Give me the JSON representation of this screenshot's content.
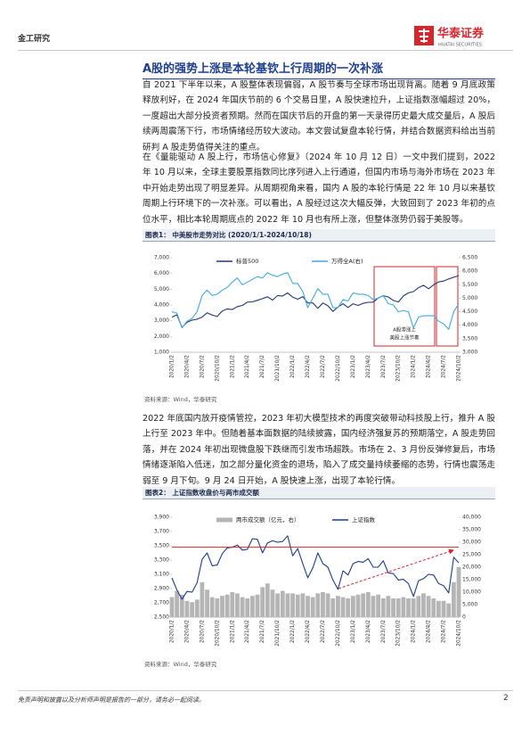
{
  "header": {
    "section": "金工研究",
    "logo_cn": "华泰证券",
    "logo_en": "HUATAI SECURITIES"
  },
  "title": "A股的强势上涨是本轮基钦上行周期的一次补涨",
  "paragraphs": [
    "自 2021 下半年以来，A 股整体表现偏弱，A 股节奏与全球市场出现背离。随着 9 月底政策释放利好，在 2024 年国庆节前的 6 个交易日里，A 股快速拉升，上证指数涨幅超过 20%，一度超出大部分投资者预期。然而在国庆节后的开盘的第一天录得历史最大成交量后，A 股后续两周震荡下行，市场情绪经历较大波动。本文尝试复盘本轮行情，并结合数据资料给出当前研判 A 股走势值得关注的重点。",
    "在《量能驱动 A 股上行，市场信心修复》（2024 年 10 月 12 日）一文中我们提到，2022 年 10 月以来，全球主要股票指数同比序列进入上行通道，但国内市场与海外市场在 2023 年中开始走势出现了明显差异。从周期视角来看，国内 A 股的本轮行情是 22 年 10 月以来基钦周期上行环境下的一次补涨。可以看出，A 股经过这次大幅反弹，大致回到了 2023 年初的点位水平，相比本轮周期底点的 2022 年 10 月也有所上涨，但整体涨势仍弱于美股等。",
    "2022 年底国内放开疫情管控，2023 年初大模型技术的再度突破带动科技股上行，推升 A 股上行至 2023 年中。但随着基本面数据的陆续披露，国内经济强复苏的预期落空，A 股走势回落，并在 2024 年初出现微盘股下跌继而引发市场超跌。市场在 2、3 月份反弹修复后，市场情绪逐渐陷入低迷，加之部分量化资金的退场，陷入了成交量持续萎缩的态势，行情也震荡走弱至 9 月下旬。9 月 24 日开始，A 股快速上涨，出现了本轮行情。"
  ],
  "footer": {
    "disclaimer": "免责声明和披露以及分析师声明是报告的一部分，请务必一起阅读。",
    "page": 2
  },
  "chart_data": [
    {
      "type": "line",
      "title": "图表1： 中美股市走势对比 (2020/1/1-2024/10/18)",
      "source": "资料来源：Wind，华泰研究",
      "annotation": [
        "A股滞涨上",
        "美股上涨节奏"
      ],
      "categories": [
        "2020/1/2",
        null,
        null,
        "2020/4/2",
        null,
        null,
        "2020/7/2",
        null,
        null,
        "2020/10/2",
        null,
        null,
        "2021/1/2",
        null,
        null,
        "2021/4/2",
        null,
        null,
        "2021/7/2",
        null,
        null,
        "2021/10/2",
        null,
        null,
        "2022/1/2",
        null,
        null,
        "2022/4/2",
        null,
        null,
        "2022/7/2",
        null,
        null,
        "2022/10/2",
        null,
        null,
        "2023/1/2",
        null,
        null,
        "2023/4/2",
        null,
        null,
        "2023/7/2",
        null,
        null,
        "2023/10/2",
        null,
        null,
        "2024/1/2",
        null,
        null,
        "2024/4/2",
        null,
        null,
        "2024/7/2",
        null,
        null,
        "2024/10/2"
      ],
      "series": [
        {
          "name": "标普500",
          "color": "#1f3a7a",
          "kind": "line",
          "values": [
            3230,
            3380,
            2580,
            2900,
            3040,
            3100,
            3230,
            3500,
            3360,
            3270,
            3620,
            3750,
            3710,
            3900,
            3970,
            4180,
            4200,
            4300,
            4400,
            4520,
            4310,
            4600,
            4570,
            4770,
            4500,
            4370,
            4530,
            4130,
            4130,
            3790,
            4130,
            3950,
            3590,
            3870,
            4080,
            3840,
            4080,
            3970,
            4110,
            4170,
            4180,
            4450,
            4590,
            4510,
            4290,
            4190,
            4570,
            4770,
            4850,
            5100,
            5250,
            5030,
            5280,
            5460,
            5520,
            5650,
            5760,
            5860
          ]
        },
        {
          "name": "万得全A(右)",
          "color": "#3fa9e0",
          "kind": "line",
          "axis": "y2",
          "values": [
            4500,
            4450,
            3900,
            4150,
            4250,
            4500,
            5100,
            5300,
            5100,
            5150,
            5300,
            5400,
            5600,
            5750,
            5500,
            5600,
            5700,
            5800,
            5750,
            5950,
            5850,
            5800,
            5900,
            5950,
            5550,
            5550,
            5250,
            4650,
            5000,
            5350,
            5150,
            5150,
            4650,
            4650,
            4950,
            4900,
            5200,
            5150,
            5150,
            5100,
            4950,
            5000,
            5100,
            4800,
            4750,
            4500,
            4550,
            4500,
            3900,
            4300,
            4350,
            4350,
            4350,
            4150,
            4050,
            3850,
            4500,
            4800
          ]
        }
      ],
      "ylim": [
        1000,
        7000
      ],
      "yticks": [
        {
          "value": 1000,
          "label": "1,000"
        },
        {
          "value": 2000,
          "label": "2,000"
        },
        {
          "value": 3000,
          "label": "3,000"
        },
        {
          "value": 4000,
          "label": "4,000"
        },
        {
          "value": 5000,
          "label": "5,000"
        },
        {
          "value": 6000,
          "label": "6,000"
        },
        {
          "value": 7000,
          "label": "7,000"
        }
      ],
      "y2lim": [
        3000,
        6500
      ],
      "y2ticks": [
        {
          "value": 3000,
          "label": "3,000"
        },
        {
          "value": 3500,
          "label": "3,500"
        },
        {
          "value": 4000,
          "label": "4,000"
        },
        {
          "value": 4500,
          "label": "4,500"
        },
        {
          "value": 5000,
          "label": "5,000"
        },
        {
          "value": 5500,
          "label": "5,500"
        },
        {
          "value": 6000,
          "label": "6,000"
        },
        {
          "value": 6500,
          "label": "6,500"
        }
      ],
      "grid": false
    },
    {
      "type": "line",
      "title": "图表2： 上证指数收盘价与两市成交额",
      "source": "资料来源：Wind，华泰研究",
      "categories": [
        "2020/1/2",
        null,
        null,
        "2020/4/2",
        null,
        null,
        "2020/7/2",
        null,
        null,
        "2020/10/2",
        null,
        null,
        "2021/1/2",
        null,
        null,
        "2021/4/2",
        null,
        null,
        "2021/7/2",
        null,
        null,
        "2021/10/2",
        null,
        null,
        "2022/1/2",
        null,
        null,
        "2022/4/2",
        null,
        null,
        "2022/7/2",
        null,
        null,
        "2022/10/2",
        null,
        null,
        "2023/1/2",
        null,
        null,
        "2023/4/2",
        null,
        null,
        "2023/7/2",
        null,
        null,
        "2023/10/2",
        null,
        null,
        "2024/1/2",
        null,
        null,
        "2024/4/2",
        null,
        null,
        "2024/7/2",
        null,
        null,
        "2024/10/2"
      ],
      "series": [
        {
          "name": "两市成交额（亿元，右）",
          "color": "#b5b5b5",
          "kind": "bar",
          "axis": "y2",
          "values": [
            8000,
            10500,
            9000,
            6500,
            6000,
            7000,
            14000,
            11000,
            8000,
            7500,
            8500,
            9000,
            10000,
            9500,
            8000,
            7500,
            8500,
            9000,
            12000,
            13500,
            11000,
            9500,
            10500,
            9500,
            9500,
            9000,
            9500,
            8500,
            8000,
            9500,
            10000,
            9500,
            7500,
            8500,
            8000,
            7500,
            8500,
            9000,
            9500,
            10000,
            8500,
            9000,
            7500,
            8500,
            7500,
            7500,
            8000,
            7500,
            7500,
            8500,
            9500,
            8500,
            7500,
            6500,
            6500,
            5500,
            14000,
            20000
          ]
        },
        {
          "name": "上证指数",
          "color": "#1a3c8c",
          "kind": "line",
          "values": [
            3050,
            2880,
            2750,
            2860,
            2850,
            2980,
            3310,
            3400,
            3220,
            3230,
            3390,
            3470,
            3480,
            3510,
            3440,
            3450,
            3600,
            3590,
            3400,
            3540,
            3570,
            3550,
            3560,
            3640,
            3360,
            3460,
            3250,
            3050,
            3190,
            3400,
            3250,
            3200,
            3020,
            2890,
            3150,
            3090,
            3250,
            3280,
            3270,
            3320,
            3200,
            3200,
            3290,
            3120,
            3110,
            3020,
            3030,
            2970,
            2790,
            3010,
            3040,
            3100,
            3090,
            2970,
            2940,
            2840,
            3340,
            3260
          ]
        }
      ],
      "reference_line": 3480,
      "ylim": [
        2500,
        3900
      ],
      "yticks": [
        {
          "value": 2500,
          "label": "2,500"
        },
        {
          "value": 2700,
          "label": "2,700"
        },
        {
          "value": 2900,
          "label": "2,900"
        },
        {
          "value": 3100,
          "label": "3,100"
        },
        {
          "value": 3300,
          "label": "3,300"
        },
        {
          "value": 3500,
          "label": "3,500"
        },
        {
          "value": 3700,
          "label": "3,700"
        },
        {
          "value": 3900,
          "label": "3,900"
        }
      ],
      "y2lim": [
        0,
        40000
      ],
      "y2ticks": [
        0,
        {
          "value": 5000,
          "label": "5,000"
        },
        {
          "value": 10000,
          "label": "10,000"
        },
        {
          "value": 15000,
          "label": "15,000"
        },
        {
          "value": 20000,
          "label": "20,000"
        },
        {
          "value": 25000,
          "label": "25,000"
        },
        {
          "value": 30000,
          "label": "30,000"
        },
        {
          "value": 35000,
          "label": "35,000"
        },
        {
          "value": 40000,
          "label": "40,000"
        }
      ],
      "grid": false
    }
  ]
}
